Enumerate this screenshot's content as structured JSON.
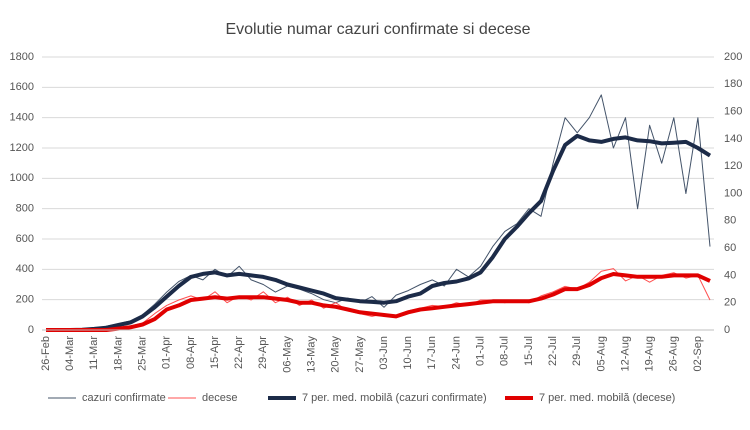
{
  "chart_data": {
    "type": "line",
    "title": "Evolutie numar cazuri confirmate si decese",
    "categories": [
      "26-Feb",
      null,
      "04-Mar",
      null,
      "11-Mar",
      null,
      "18-Mar",
      null,
      "25-Mar",
      null,
      "01-Apr",
      null,
      "08-Apr",
      null,
      "15-Apr",
      null,
      "22-Apr",
      null,
      "29-Apr",
      null,
      "06-May",
      null,
      "13-May",
      null,
      "20-May",
      null,
      "27-May",
      null,
      "03-Jun",
      null,
      "10-Jun",
      null,
      "17-Jun",
      null,
      "24-Jun",
      null,
      "01-Jul",
      null,
      "08-Jul",
      null,
      "15-Jul",
      null,
      "22-Jul",
      null,
      "29-Jul",
      null,
      "05-Aug",
      null,
      "12-Aug",
      null,
      "19-Aug",
      null,
      "26-Aug",
      null,
      "02-Sep",
      null
    ],
    "ylim": [
      0,
      1800
    ],
    "yticks": [
      0,
      200,
      400,
      600,
      800,
      1000,
      1200,
      1400,
      1600,
      1800
    ],
    "y2lim": [
      0,
      200
    ],
    "y2ticks": [
      0,
      20,
      40,
      60,
      80,
      100,
      120,
      140,
      160,
      180,
      200
    ],
    "grid": true,
    "legend": "bottom",
    "series": [
      {
        "name": "cazuri confirmate",
        "color": "#44546a",
        "width": 1,
        "values": [
          0,
          0,
          1,
          2,
          10,
          25,
          40,
          60,
          100,
          170,
          250,
          320,
          360,
          330,
          400,
          350,
          420,
          330,
          300,
          250,
          290,
          270,
          240,
          200,
          180,
          210,
          180,
          220,
          150,
          230,
          260,
          300,
          330,
          290,
          400,
          350,
          420,
          550,
          650,
          700,
          800,
          750,
          1100,
          1400,
          1300,
          1400,
          1550,
          1200,
          1400,
          800,
          1350,
          1100,
          1400,
          900,
          1400,
          550
        ]
      },
      {
        "name": "decese",
        "color": "#ff5050",
        "width": 1,
        "axis": "y2",
        "values": [
          0,
          0,
          0,
          0,
          0,
          0,
          1,
          3,
          5,
          12,
          18,
          22,
          25,
          22,
          28,
          20,
          25,
          22,
          28,
          20,
          24,
          18,
          22,
          16,
          20,
          14,
          12,
          10,
          12,
          9,
          14,
          16,
          18,
          17,
          20,
          18,
          22,
          22,
          20,
          22,
          20,
          25,
          28,
          32,
          30,
          35,
          43,
          45,
          36,
          40,
          35,
          40,
          42,
          38,
          40,
          22
        ]
      },
      {
        "name": "7 per. med. mobilă (cazuri confirmate)",
        "color": "#1c2b48",
        "width": 4,
        "values": [
          0,
          0,
          0,
          1,
          7,
          15,
          33,
          50,
          90,
          150,
          220,
          290,
          350,
          370,
          380,
          360,
          370,
          360,
          350,
          330,
          300,
          280,
          260,
          240,
          210,
          200,
          190,
          185,
          180,
          190,
          220,
          240,
          290,
          310,
          320,
          340,
          380,
          480,
          600,
          680,
          770,
          850,
          1050,
          1220,
          1280,
          1250,
          1240,
          1260,
          1270,
          1250,
          1245,
          1230,
          1235,
          1240,
          1200,
          1150
        ]
      },
      {
        "name": "7 per. med. mobilă (decese)",
        "color": "#e00000",
        "width": 4,
        "axis": "y2",
        "values": [
          0,
          0,
          0,
          0,
          0,
          0,
          1,
          2,
          4,
          8,
          15,
          18,
          22,
          23,
          24,
          23,
          24,
          24,
          24,
          23,
          22,
          20,
          20,
          18,
          17,
          15,
          13,
          12,
          11,
          10,
          13,
          15,
          16,
          17,
          18,
          19,
          20,
          21,
          21,
          21,
          21,
          23,
          26,
          30,
          30,
          33,
          38,
          41,
          40,
          39,
          39,
          39,
          40,
          40,
          40,
          36
        ]
      }
    ]
  }
}
